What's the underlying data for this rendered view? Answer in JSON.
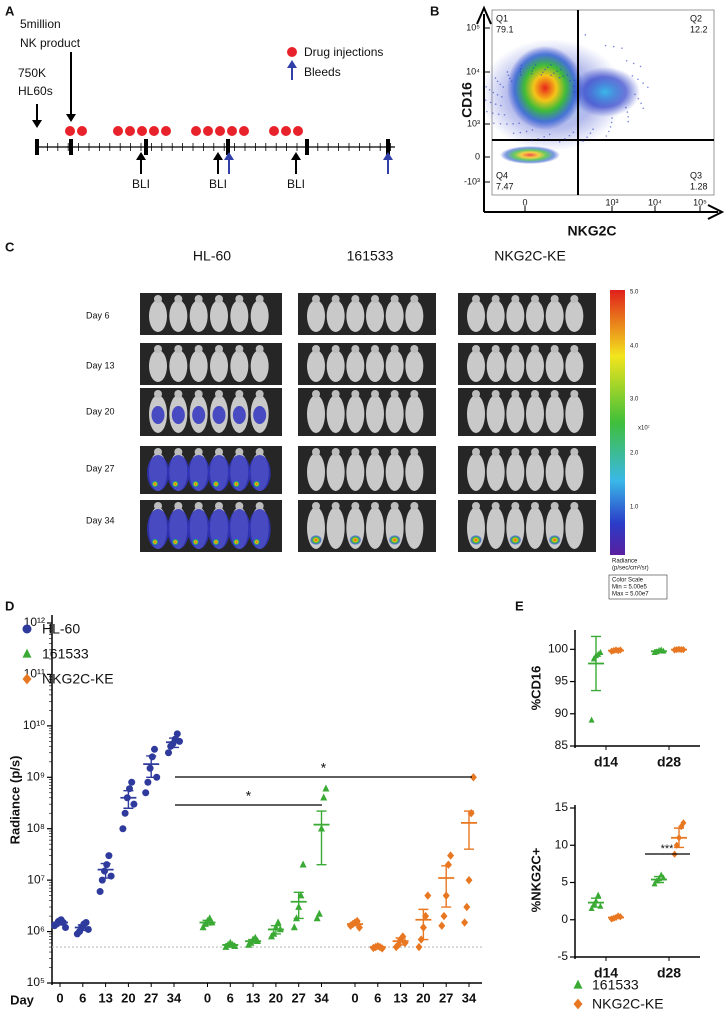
{
  "panel_labels": [
    "A",
    "B",
    "C",
    "D",
    "E"
  ],
  "timeline": {
    "hl60": [
      "750K",
      "HL60s"
    ],
    "nk": [
      "5million",
      "NK product"
    ],
    "legend": [
      "Drug injections",
      "Bleeds"
    ],
    "bli": [
      "BLI",
      "BLI",
      "BLI"
    ]
  },
  "flow": {
    "y_label": "CD16",
    "x_label": "NKG2C",
    "quadrants": [
      {
        "name": "Q1",
        "value": 79.1
      },
      {
        "name": "Q2",
        "value": 12.2
      },
      {
        "name": "Q4",
        "value": 7.47
      },
      {
        "name": "Q3",
        "value": 1.28
      }
    ],
    "yticks": [
      "10⁵",
      "10⁴",
      "10³",
      "0",
      "-10³"
    ],
    "xticks": [
      "0",
      "10³",
      "10⁴",
      "10⁵"
    ]
  },
  "imaging": {
    "columns": [
      "HL-60",
      "161533",
      "NKG2C-KE"
    ],
    "rows": [
      "Day 6",
      "Day 13",
      "Day 20",
      "Day 27",
      "Day 34"
    ],
    "colorbar": {
      "ticks": [
        "5.0",
        "4.0",
        "3.0",
        "2.0",
        "1.0"
      ],
      "multiplier": "x10⁷",
      "label": [
        "Radiance",
        "(p/sec/cm²/sr)"
      ],
      "scale": [
        "Color Scale",
        "Min = 5.00e5",
        "Max = 5.00e7"
      ]
    }
  },
  "chart_data": [
    {
      "type": "dot",
      "y_label": "Radiance (p/s)",
      "x_label": "Day",
      "log_scale": true,
      "categories": [
        "0",
        "6",
        "13",
        "20",
        "27",
        "34"
      ],
      "ylim": [
        100000,
        1000000000000
      ],
      "yticks": [
        {
          "value": 100000,
          "label": "10⁵"
        },
        {
          "value": 1000000,
          "label": "10⁶"
        },
        {
          "value": 10000000,
          "label": "10⁷"
        },
        {
          "value": 100000000,
          "label": "10⁸"
        },
        {
          "value": 1000000000,
          "label": "10⁹"
        },
        {
          "value": 10000000000,
          "label": "10¹⁰"
        },
        {
          "value": 100000000000,
          "label": "10¹¹"
        },
        {
          "value": 1000000000000,
          "label": "10¹²"
        }
      ],
      "threshold": 500000,
      "annotations": [
        "*",
        "*"
      ],
      "series": [
        {
          "name": "HL-60",
          "color": "#2e3a9c",
          "marker": "circle",
          "values": [
            1500000,
            1200000,
            16000000,
            400000000,
            1800000000,
            4800000000
          ],
          "errors": [
            150000,
            150000,
            5000000,
            150000000,
            800000000,
            1000000000
          ],
          "points": [
            [
              1300000,
              1400000,
              1600000,
              1700000,
              1500000,
              1200000
            ],
            [
              900000,
              1000000,
              1200000,
              1400000,
              1500000,
              1100000
            ],
            [
              6000000,
              10000000,
              15000000,
              20000000,
              30000000,
              12000000
            ],
            [
              100000000,
              200000000,
              400000000,
              600000000,
              800000000,
              300000000
            ],
            [
              500000000,
              800000000,
              1500000000,
              2500000000,
              3500000000,
              1000000000
            ],
            [
              3000000000,
              4000000000,
              4500000000,
              5500000000,
              7000000000,
              5000000000
            ]
          ]
        },
        {
          "name": "161533",
          "color": "#3aaa35",
          "marker": "triangle",
          "values": [
            1500000,
            550000,
            650000,
            1100000,
            3800000,
            120000000
          ],
          "errors": [
            150000,
            30000,
            50000,
            200000,
            2000000,
            100000000
          ],
          "points": [
            [
              1200000,
              1400000,
              1600000,
              1800000,
              1500000
            ],
            [
              500000,
              550000,
              600000,
              550000,
              520000
            ],
            [
              550000,
              600000,
              700000,
              750000,
              650000
            ],
            [
              800000,
              900000,
              1200000,
              1500000,
              1100000
            ],
            [
              1200000,
              1800000,
              3000000,
              5000000,
              20000000
            ],
            [
              1800000,
              2200000,
              100000000,
              400000000,
              600000000
            ]
          ]
        },
        {
          "name": "NKG2C-KE",
          "color": "#e87722",
          "marker": "diamond",
          "values": [
            1400000,
            500000,
            650000,
            1700000,
            11000000,
            130000000
          ],
          "errors": [
            100000,
            20000,
            100000,
            1000000,
            8000000,
            90000000
          ],
          "points": [
            [
              1300000,
              1400000,
              1500000,
              1600000,
              1200000
            ],
            [
              480000,
              500000,
              520000,
              500000,
              470000
            ],
            [
              500000,
              550000,
              700000,
              800000,
              600000
            ],
            [
              500000,
              700000,
              1200000,
              2000000,
              5000000
            ],
            [
              1300000,
              2000000,
              5000000,
              20000000,
              30000000
            ],
            [
              1500000,
              3000000,
              10000000,
              200000000,
              1000000000
            ]
          ]
        }
      ]
    },
    {
      "type": "dot",
      "y_label": "%CD16",
      "categories": [
        "d14",
        "d28"
      ],
      "ylim": [
        85,
        103
      ],
      "yticks": [
        85,
        90,
        95,
        100
      ],
      "series": [
        {
          "color": "#3aaa35",
          "marker": "triangle",
          "values": [
            97.8,
            99.7
          ],
          "errors": [
            4.2,
            0.2
          ],
          "points": [
            [
              89,
              98.5,
              99,
              99.2,
              99.5
            ],
            [
              99.5,
              99.6,
              99.8,
              99.9,
              99.7
            ]
          ]
        },
        {
          "color": "#e87722",
          "marker": "diamond",
          "values": [
            99.8,
            99.95
          ],
          "errors": [
            0.1,
            0.02
          ],
          "points": [
            [
              99.7,
              99.8,
              99.9,
              99.8,
              99.9
            ],
            [
              99.9,
              99.95,
              100,
              99.95,
              99.95
            ]
          ]
        }
      ]
    },
    {
      "type": "dot",
      "y_label": "%NKG2C+",
      "categories": [
        "d14",
        "d28"
      ],
      "ylim": [
        -5,
        15
      ],
      "yticks": [
        -5,
        0,
        5,
        10,
        15
      ],
      "annotations": [
        "***"
      ],
      "series": [
        {
          "name": "161533",
          "color": "#3aaa35",
          "marker": "triangle",
          "values": [
            2.3,
            5.4
          ],
          "errors": [
            0.6,
            0.4
          ],
          "points": [
            [
              1.5,
              2,
              2.5,
              3.3,
              1.8
            ],
            [
              4.8,
              5.2,
              5.5,
              6,
              5.6
            ]
          ]
        },
        {
          "name": "NKG2C-KE",
          "color": "#e87722",
          "marker": "diamond",
          "values": [
            0.3,
            11
          ],
          "errors": [
            0.1,
            1.3
          ],
          "points": [
            [
              0.1,
              0.2,
              0.3,
              0.5,
              0.4
            ],
            [
              8.8,
              10,
              11,
              12.5,
              13
            ]
          ]
        }
      ]
    }
  ]
}
